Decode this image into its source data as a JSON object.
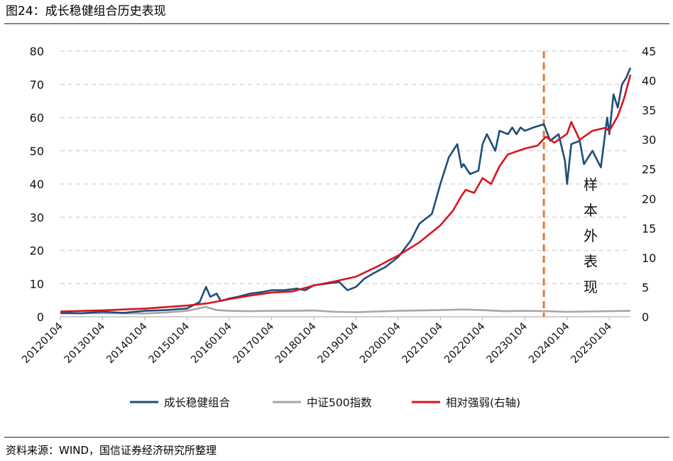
{
  "figure_title": "图24：成长稳健组合历史表现",
  "source_note": "资料来源：WIND，国信证券经济研究所整理",
  "chart_data": {
    "type": "line",
    "y_left": {
      "min": 0,
      "max": 80,
      "ticks": [
        0,
        10,
        20,
        30,
        40,
        50,
        60,
        70,
        80
      ]
    },
    "y_right": {
      "min": 0,
      "max": 45,
      "ticks": [
        0,
        5,
        10,
        15,
        20,
        25,
        30,
        35,
        40,
        45
      ]
    },
    "x_ticks": [
      "20120104",
      "20130104",
      "20140104",
      "20150104",
      "20160104",
      "20170104",
      "20180104",
      "20190104",
      "20200104",
      "20210104",
      "20220104",
      "20230104",
      "20240104",
      "20250104"
    ],
    "x_range": [
      2012.0,
      2025.5
    ],
    "grid": "horizontal dashed",
    "legend_position": "bottom",
    "annotation": {
      "text": "样本外表现",
      "divider_x": 2023.45,
      "color": "#e07b39"
    },
    "series": [
      {
        "name": "成长稳健组合",
        "axis": "left",
        "color": "#1f4e79",
        "x": [
          2012.0,
          2012.5,
          2013.0,
          2013.5,
          2014.0,
          2014.5,
          2015.0,
          2015.3,
          2015.45,
          2015.55,
          2015.7,
          2015.8,
          2016.0,
          2016.2,
          2016.5,
          2016.8,
          2017.0,
          2017.3,
          2017.6,
          2017.8,
          2018.0,
          2018.3,
          2018.6,
          2018.8,
          2019.0,
          2019.2,
          2019.4,
          2019.7,
          2019.9,
          2020.0,
          2020.3,
          2020.5,
          2020.6,
          2020.8,
          2021.0,
          2021.2,
          2021.4,
          2021.5,
          2021.55,
          2021.7,
          2021.9,
          2022.0,
          2022.1,
          2022.3,
          2022.4,
          2022.6,
          2022.7,
          2022.8,
          2022.9,
          2023.0,
          2023.2,
          2023.45,
          2023.6,
          2023.8,
          2023.95,
          2024.0,
          2024.1,
          2024.3,
          2024.4,
          2024.6,
          2024.8,
          2024.95,
          2025.0,
          2025.1,
          2025.2,
          2025.3,
          2025.4,
          2025.5
        ],
        "y": [
          1.2,
          1.1,
          1.5,
          1.2,
          1.8,
          2.0,
          2.5,
          4.5,
          9.0,
          6.0,
          7.0,
          4.8,
          5.5,
          6.0,
          7.0,
          7.5,
          8.0,
          8.0,
          8.5,
          8.0,
          9.5,
          10.0,
          10.5,
          8.0,
          9.0,
          11.5,
          13.0,
          15.0,
          17.0,
          18.0,
          23.0,
          28.0,
          29.0,
          31.0,
          40.0,
          48.0,
          52.0,
          45.0,
          46.0,
          43.0,
          44.0,
          52.0,
          55.0,
          50.0,
          56.0,
          55.0,
          57.0,
          55.0,
          57.0,
          56.0,
          57.0,
          58.0,
          53.0,
          55.0,
          47.0,
          40.0,
          52.0,
          53.0,
          46.0,
          50.0,
          45.0,
          60.0,
          55.0,
          67.0,
          63.0,
          70.0,
          72.0,
          75.0
        ]
      },
      {
        "name": "中证500指数",
        "axis": "left",
        "color": "#a6a6a6",
        "x": [
          2012.0,
          2013.0,
          2014.0,
          2014.5,
          2015.0,
          2015.45,
          2015.7,
          2016.0,
          2016.5,
          2017.0,
          2017.5,
          2018.0,
          2018.5,
          2019.0,
          2019.5,
          2020.0,
          2020.5,
          2021.0,
          2021.5,
          2022.0,
          2022.5,
          2023.0,
          2023.5,
          2024.0,
          2024.5,
          2025.0,
          2025.5
        ],
        "y": [
          1.0,
          1.1,
          1.0,
          1.3,
          1.8,
          3.0,
          2.0,
          1.8,
          1.7,
          1.8,
          1.8,
          1.9,
          1.5,
          1.4,
          1.6,
          1.8,
          1.9,
          2.0,
          2.2,
          2.0,
          1.7,
          1.8,
          1.7,
          1.5,
          1.6,
          1.7,
          1.8
        ]
      },
      {
        "name": "相对强弱(右轴)",
        "axis": "right",
        "color": "#d7141e",
        "x": [
          2012.0,
          2013.0,
          2014.0,
          2015.0,
          2015.5,
          2016.0,
          2016.5,
          2017.0,
          2017.5,
          2018.0,
          2018.5,
          2019.0,
          2019.5,
          2020.0,
          2020.5,
          2021.0,
          2021.3,
          2021.5,
          2021.6,
          2021.8,
          2022.0,
          2022.2,
          2022.4,
          2022.6,
          2022.8,
          2023.0,
          2023.3,
          2023.5,
          2023.7,
          2024.0,
          2024.1,
          2024.3,
          2024.6,
          2024.9,
          2025.0,
          2025.2,
          2025.35,
          2025.5
        ],
        "y": [
          0.9,
          1.1,
          1.4,
          1.9,
          2.3,
          3.0,
          3.6,
          4.1,
          4.3,
          5.3,
          6.0,
          6.8,
          8.5,
          10.4,
          12.6,
          15.5,
          18.0,
          20.5,
          21.5,
          21.0,
          23.5,
          22.5,
          25.5,
          27.5,
          28.0,
          28.5,
          29.0,
          30.5,
          29.5,
          31.0,
          33.0,
          30.0,
          31.5,
          32.0,
          31.5,
          34.0,
          37.0,
          41.0
        ]
      }
    ]
  }
}
